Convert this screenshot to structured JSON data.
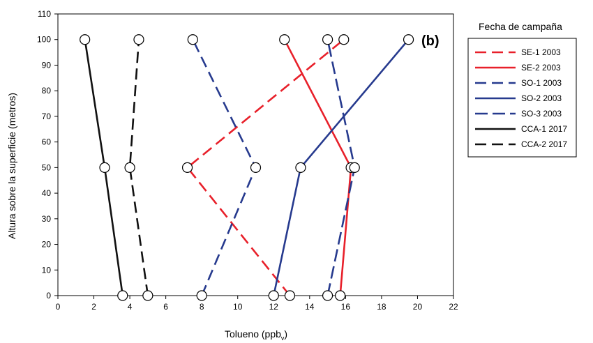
{
  "chart_data": {
    "type": "line",
    "panel_label": "(b)",
    "xlabel": "Tolueno (ppb",
    "xlabel_sub": "v",
    "xlabel_close": ")",
    "ylabel": "Altura sobre la superficie (metros)",
    "xlim": [
      0,
      22
    ],
    "ylim": [
      0,
      110
    ],
    "x_ticks": [
      0,
      2,
      4,
      6,
      8,
      10,
      12,
      14,
      16,
      18,
      20,
      22
    ],
    "y_ticks": [
      0,
      10,
      20,
      30,
      40,
      50,
      60,
      70,
      80,
      90,
      100,
      110
    ],
    "grid": false,
    "legend": {
      "title": "Fecha de campaña",
      "placement": "right"
    },
    "series": [
      {
        "name": "SE-1 2003",
        "color": "#e8202a",
        "dash": "dashed",
        "points": [
          [
            12.9,
            0
          ],
          [
            7.2,
            50
          ],
          [
            15.9,
            100
          ]
        ]
      },
      {
        "name": "SE-2 2003",
        "color": "#e8202a",
        "dash": "solid",
        "points": [
          [
            15.7,
            0
          ],
          [
            16.3,
            50
          ],
          [
            12.6,
            100
          ]
        ]
      },
      {
        "name": "SO-1 2003",
        "color": "#263a8e",
        "dash": "dashed",
        "points": [
          [
            8.0,
            0
          ],
          [
            11.0,
            50
          ],
          [
            7.5,
            100
          ]
        ]
      },
      {
        "name": "SO-2 2003",
        "color": "#263a8e",
        "dash": "solid",
        "points": [
          [
            12.0,
            0
          ],
          [
            13.5,
            50
          ],
          [
            19.5,
            100
          ]
        ]
      },
      {
        "name": "SO-3 2003",
        "color": "#263a8e",
        "dash": "longdash",
        "points": [
          [
            15.0,
            0
          ],
          [
            16.5,
            50
          ],
          [
            15.0,
            100
          ]
        ]
      },
      {
        "name": "CCA-1 2017",
        "color": "#111111",
        "dash": "solid",
        "points": [
          [
            3.6,
            0
          ],
          [
            2.6,
            50
          ],
          [
            1.5,
            100
          ]
        ]
      },
      {
        "name": "CCA-2 2017",
        "color": "#111111",
        "dash": "dashed",
        "points": [
          [
            5.0,
            0
          ],
          [
            4.0,
            50
          ],
          [
            4.5,
            100
          ]
        ]
      }
    ]
  }
}
